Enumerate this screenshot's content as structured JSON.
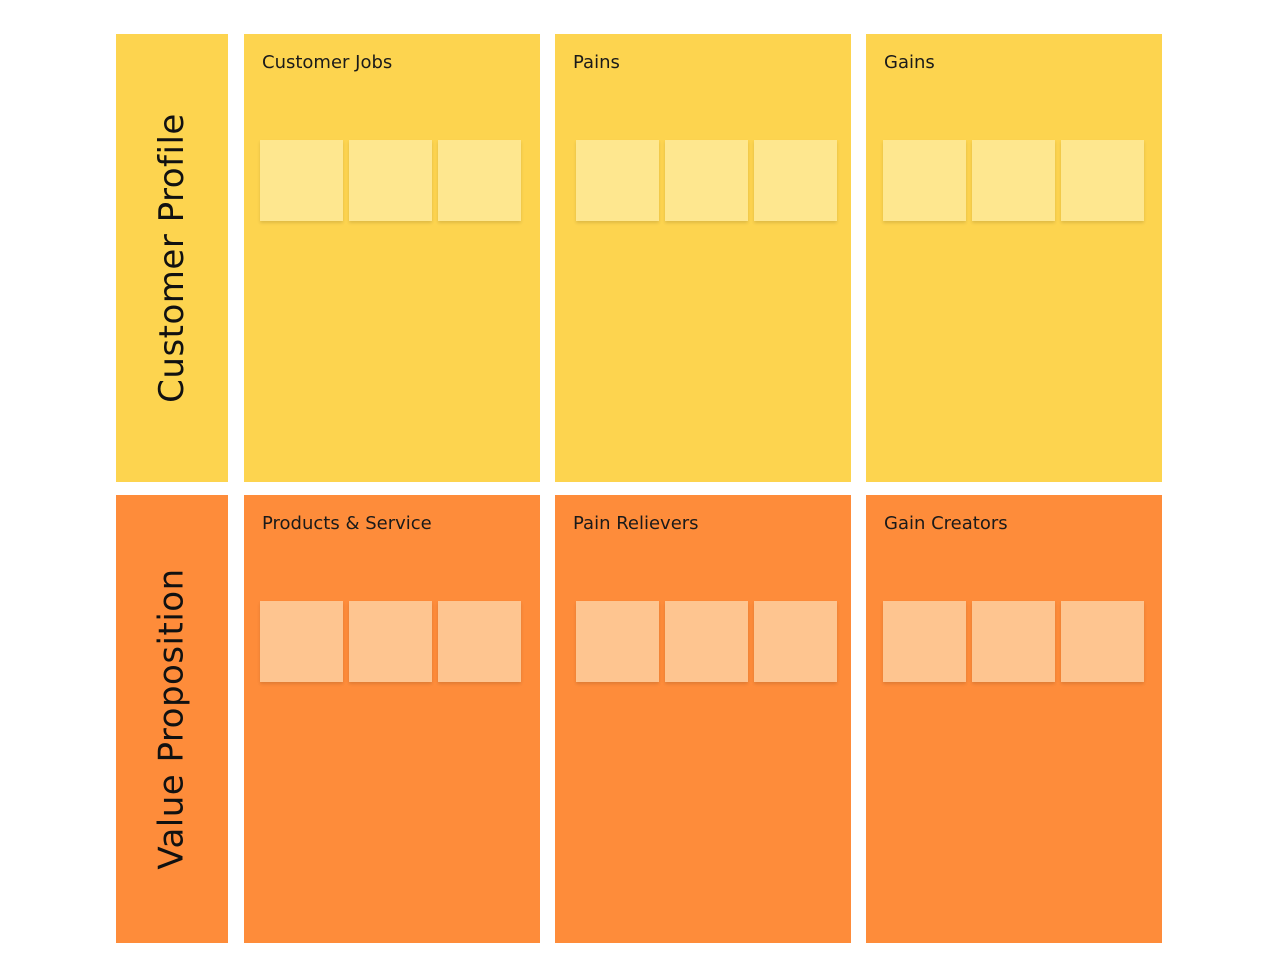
{
  "colors": {
    "customer_profile_fill": "#FDD44F",
    "customer_profile_note": "#FEE78F",
    "value_proposition_fill": "#FE8C3A",
    "value_proposition_note": "#FEC590"
  },
  "customer_profile": {
    "label": "Customer Profile",
    "sections": [
      {
        "title": "Customer Jobs",
        "notes": [
          "",
          "",
          ""
        ]
      },
      {
        "title": "Pains",
        "notes": [
          "",
          "",
          ""
        ]
      },
      {
        "title": "Gains",
        "notes": [
          "",
          "",
          ""
        ]
      }
    ]
  },
  "value_proposition": {
    "label": "Value Proposition",
    "sections": [
      {
        "title": "Products & Service",
        "notes": [
          "",
          "",
          ""
        ]
      },
      {
        "title": "Pain Relievers",
        "notes": [
          "",
          "",
          ""
        ]
      },
      {
        "title": "Gain Creators",
        "notes": [
          "",
          "",
          ""
        ]
      }
    ]
  }
}
